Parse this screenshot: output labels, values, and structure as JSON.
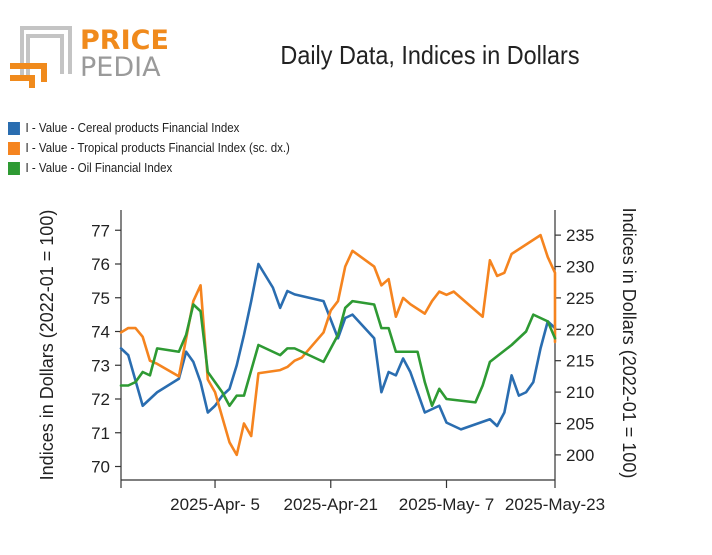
{
  "logo": {
    "text_top": "PRICE",
    "text_bottom": "PEDIA",
    "accent_color": "#f08a1c",
    "grey_color": "#c0c0c0"
  },
  "chart_data": {
    "type": "line",
    "title": "Daily Data, Indices in Dollars",
    "ylabel": "Indices in Dollars (2022-01 = 100)",
    "ylabel_right": "Indices in Dollars (2022-01 = 100)",
    "xlim": [
      0,
      60
    ],
    "ylim": [
      69.6,
      77.6
    ],
    "ylim_right": [
      196,
      239
    ],
    "x_ticks": [
      {
        "x": 13,
        "label": "2025-Apr- 5"
      },
      {
        "x": 29,
        "label": "2025-Apr-21"
      },
      {
        "x": 45,
        "label": "2025-May- 7"
      },
      {
        "x": 61,
        "label": "2025-May-23"
      }
    ],
    "y_ticks_left": [
      70,
      71,
      72,
      73,
      74,
      75,
      76,
      77
    ],
    "y_ticks_right": [
      200,
      205,
      210,
      215,
      220,
      225,
      230,
      235
    ],
    "series": [
      {
        "name": "I - Value - Cereal products Financial Index",
        "axis": "left",
        "color": "#2a6db0",
        "x": [
          0,
          1,
          3,
          5,
          8,
          9,
          10,
          11,
          12,
          13,
          14,
          15,
          16,
          17,
          18,
          19,
          21,
          22,
          23,
          24,
          28,
          30,
          31,
          32,
          35,
          36,
          37,
          38,
          39,
          40,
          42,
          44,
          45,
          46,
          47,
          51,
          52,
          53,
          54,
          55,
          56,
          57,
          58,
          59,
          60
        ],
        "y": [
          73.5,
          73.3,
          71.8,
          72.2,
          72.6,
          73.4,
          73.1,
          72.5,
          71.6,
          71.8,
          72.1,
          72.3,
          73.0,
          73.9,
          74.9,
          76.0,
          75.3,
          74.7,
          75.2,
          75.1,
          74.9,
          73.8,
          74.4,
          74.5,
          73.8,
          72.2,
          72.8,
          72.7,
          73.2,
          72.8,
          71.6,
          71.8,
          71.3,
          71.2,
          71.1,
          71.4,
          71.2,
          71.6,
          72.7,
          72.1,
          72.2,
          72.5,
          73.5,
          74.3,
          74.1
        ]
      },
      {
        "name": "I - Value - Tropical products Financial Index (sc. dx.)",
        "axis": "right",
        "color": "#f5841f",
        "x": [
          0,
          1,
          2,
          3,
          4,
          5,
          8,
          10,
          11,
          12,
          13,
          14,
          15,
          16,
          17,
          18,
          19,
          22,
          23,
          24,
          25,
          28,
          29,
          30,
          31,
          32,
          35,
          36,
          37,
          38,
          39,
          40,
          42,
          43,
          44,
          45,
          46,
          50,
          51,
          52,
          53,
          54,
          58,
          59,
          60,
          61
        ],
        "y": [
          219.5,
          220.2,
          220.2,
          218.8,
          215.0,
          214.5,
          212.5,
          224.5,
          227.0,
          212.0,
          210.0,
          206.0,
          202.0,
          200.0,
          205.0,
          203.0,
          213.0,
          213.5,
          214.0,
          215.0,
          215.5,
          219.5,
          223.0,
          224.5,
          230.0,
          232.5,
          230.0,
          227.0,
          228.0,
          222.0,
          225.0,
          224.0,
          222.5,
          224.5,
          226.0,
          225.5,
          226.0,
          222.0,
          231.0,
          228.5,
          229.0,
          232.0,
          235.0,
          231.5,
          229.0,
          218.0
        ]
      },
      {
        "name": "I - Value - Oil Financial Index",
        "axis": "left",
        "color": "#2e9a33",
        "x": [
          0,
          1,
          2,
          3,
          4,
          5,
          8,
          9,
          10,
          11,
          12,
          13,
          14,
          15,
          16,
          17,
          19,
          22,
          23,
          24,
          25,
          28,
          30,
          31,
          32,
          35,
          36,
          37,
          38,
          41,
          42,
          43,
          44,
          45,
          49,
          50,
          51,
          54,
          55,
          56,
          57,
          58,
          59,
          60
        ],
        "y": [
          72.4,
          72.4,
          72.5,
          72.8,
          72.7,
          73.5,
          73.4,
          73.9,
          74.8,
          74.6,
          72.8,
          72.5,
          72.2,
          71.8,
          72.1,
          72.1,
          73.6,
          73.3,
          73.5,
          73.5,
          73.4,
          73.1,
          73.9,
          74.7,
          74.9,
          74.8,
          74.1,
          74.1,
          73.4,
          73.4,
          72.5,
          71.8,
          72.3,
          72.0,
          71.9,
          72.4,
          73.1,
          73.6,
          73.8,
          74.0,
          74.5,
          74.4,
          74.3,
          73.8
        ]
      }
    ]
  }
}
